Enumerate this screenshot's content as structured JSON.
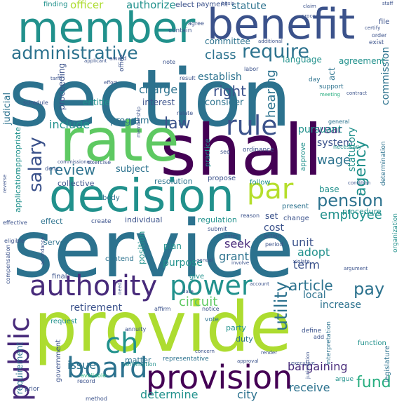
{
  "palette": [
    "#440154",
    "#472a7a",
    "#3b528b",
    "#2c728e",
    "#21918c",
    "#28ae80",
    "#5ec962",
    "#addc30",
    "#b5de2b"
  ],
  "words": [
    "section",
    "service",
    "provide",
    "shall",
    "decision",
    "member",
    "benefit",
    "rate",
    "provision",
    "par",
    "board",
    "authority",
    "power",
    "public",
    "rule",
    "pension",
    "administrative",
    "require",
    "review",
    "salary",
    "agency",
    "ch",
    "utility",
    "fund",
    "employee",
    "article",
    "pay",
    "circuit",
    "law",
    "charge",
    "right",
    "statute",
    "officer",
    "authorize",
    "finding",
    "class",
    "hearing",
    "include",
    "receive",
    "determine",
    "city",
    "issue",
    "bargaining",
    "year",
    "pursuant",
    "system",
    "wage",
    "grant",
    "seek",
    "unit",
    "adopt",
    "cost",
    "set",
    "term",
    "local",
    "increase",
    "statutory",
    "retirement",
    "request",
    "judicial",
    "application",
    "subject",
    "program",
    "interest",
    "establish",
    "consider",
    "entitle",
    "commission",
    "committee",
    "language",
    "agreement",
    "act",
    "collective",
    "resolution",
    "purpose",
    "position",
    "plan",
    "regulation",
    "individual",
    "effect",
    "serve",
    "compensation",
    "legislature",
    "procedure",
    "contend",
    "give",
    "present",
    "base",
    "approve",
    "propose",
    "follow",
    "necessary",
    "practice",
    "final",
    "party",
    "duty",
    "vote",
    "matter",
    "representative",
    "certification",
    "define",
    "function",
    "argue",
    "exist",
    "contain",
    "elect",
    "payment",
    "file",
    "support",
    "day",
    "general",
    "condition",
    "determination",
    "appropriate",
    "interpretation",
    "organization",
    "effective",
    "requirement",
    "government",
    "labor",
    "commissioner",
    "deny",
    "exercise",
    "award",
    "schedule",
    "proceeding",
    "office",
    "note",
    "result",
    "relate",
    "seq",
    "ordinance",
    "body",
    "create",
    "submit",
    "reason",
    "change",
    "period",
    "action",
    "notice",
    "affirm",
    "annuity",
    "eligible",
    "record",
    "available",
    "method",
    "prior",
    "executive",
    "meeting",
    "additional",
    "agree",
    "basis",
    "staff",
    "claim",
    "tariff",
    "order",
    "applicant",
    "process",
    "effort",
    "concern",
    "render",
    "involve",
    "date",
    "account",
    "violate",
    "argument",
    "contract",
    "reverse",
    "accordance",
    "jurisdiction",
    "add",
    "need",
    "annual",
    "enter",
    "approval",
    "pursuant",
    "certify",
    "membership",
    "provide",
    "include",
    "base"
  ]
}
